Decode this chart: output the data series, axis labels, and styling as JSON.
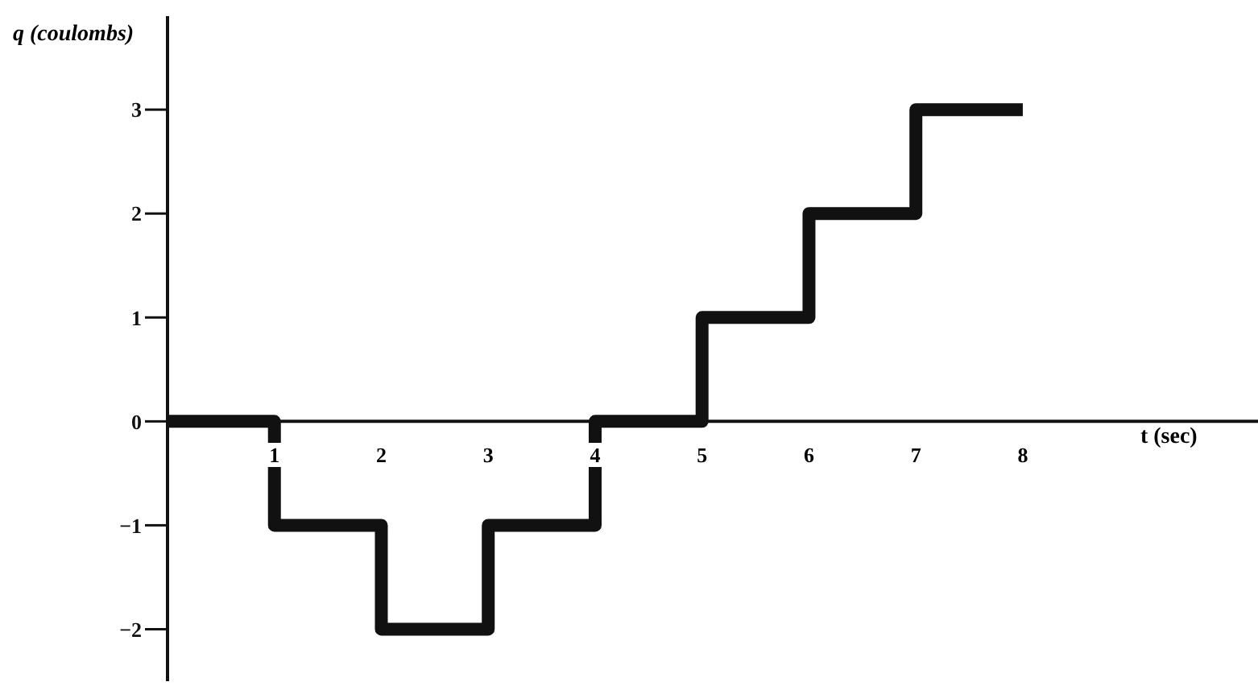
{
  "chart_data": {
    "type": "step",
    "xlabel": "t (sec)",
    "ylabel": "q (coulombs)",
    "x": [
      0,
      1,
      2,
      3,
      4,
      5,
      6,
      7,
      8
    ],
    "series": [
      {
        "color": "#111111",
        "values": [
          0,
          -1,
          -2,
          -1,
          0,
          1,
          2,
          3,
          3
        ]
      }
    ],
    "xlim": [
      0,
      10.2
    ],
    "ylim": [
      -2.5,
      3.9
    ],
    "xticks": [
      1,
      2,
      3,
      4,
      5,
      6,
      7,
      8
    ],
    "yticks": [
      {
        "value": -2,
        "label": "−2"
      },
      {
        "value": -1,
        "label": "−1"
      },
      0,
      1,
      2,
      3
    ],
    "line_style": "solid"
  }
}
